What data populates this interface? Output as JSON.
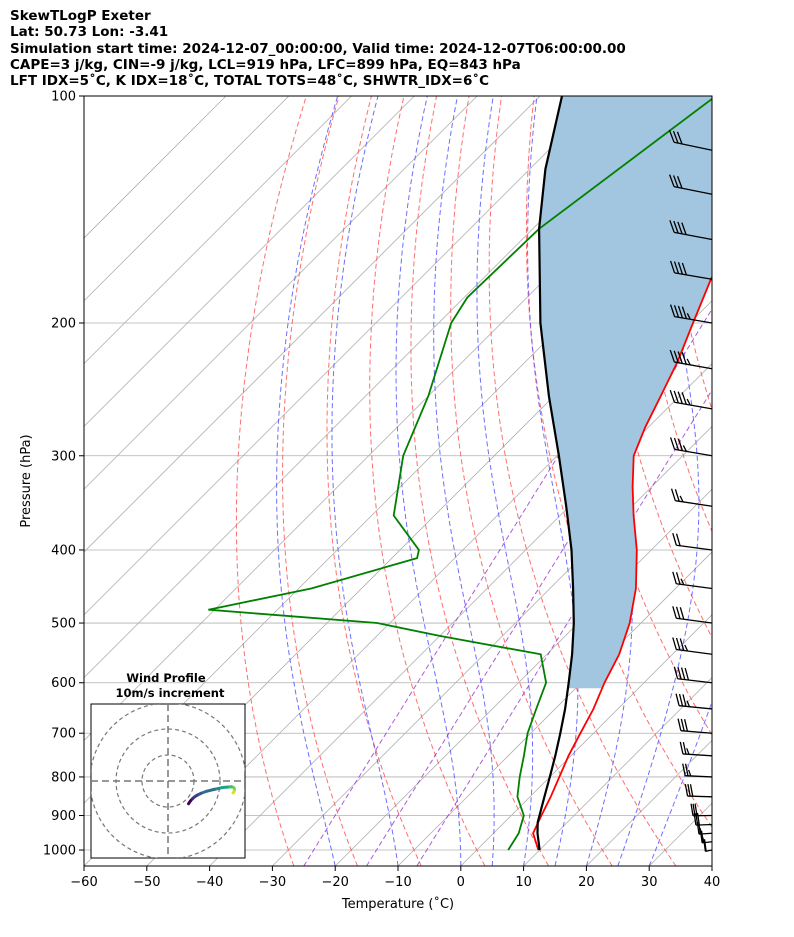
{
  "title_lines": [
    "SkewTLogP Exeter",
    "Lat: 50.73   Lon: -3.41",
    "Simulation start time: 2024-12-07_00:00:00, Valid time: 2024-12-07T06:00:00.00",
    "CAPE=3 j/kg, CIN=-9 j/kg, LCL=919 hPa, LFC=899 hPa, EQ=843 hPa",
    "LFT IDX=5˚C, K IDX=18˚C, TOTAL TOTS=48˚C, SHWTR_IDX=6˚C"
  ],
  "chart_data": {
    "type": "line",
    "xlabel": "Temperature (˚C)",
    "ylabel": "Pressure (hPa)",
    "xlim": [
      -60,
      40
    ],
    "ylim_pressure_hPa": [
      1050,
      100
    ],
    "y_scale": "log",
    "skew_factor": 1.0,
    "x_ticks": [
      -60,
      -50,
      -40,
      -30,
      -20,
      -10,
      0,
      10,
      20,
      30,
      40
    ],
    "x_tick_labels": [
      "−60",
      "−50",
      "−40",
      "−30",
      "−20",
      "−10",
      "0",
      "10",
      "20",
      "30",
      "40"
    ],
    "y_ticks": [
      100,
      200,
      300,
      400,
      500,
      600,
      700,
      800,
      900,
      1000
    ],
    "grid": true,
    "series": [
      {
        "color": "#ff0000",
        "points": [
          [
            1000,
            9.8
          ],
          [
            950,
            6.3
          ],
          [
            900,
            4.8
          ],
          [
            850,
            3.3
          ],
          [
            800,
            1.5
          ],
          [
            750,
            -0.4
          ],
          [
            700,
            -2.1
          ],
          [
            650,
            -3.9
          ],
          [
            600,
            -6.3
          ],
          [
            550,
            -8.5
          ],
          [
            500,
            -11.8
          ],
          [
            450,
            -16.3
          ],
          [
            400,
            -22.3
          ],
          [
            360,
            -28.3
          ],
          [
            330,
            -33.0
          ],
          [
            300,
            -37.8
          ],
          [
            275,
            -40.5
          ],
          [
            250,
            -43.0
          ],
          [
            225,
            -45.8
          ],
          [
            200,
            -49.5
          ],
          [
            175,
            -53.6
          ],
          [
            150,
            -57.3
          ],
          [
            125,
            -59.8
          ],
          [
            110,
            -61.2
          ],
          [
            100,
            -61.9
          ]
        ]
      },
      {
        "color": "#008000",
        "points": [
          [
            1000,
            5.0
          ],
          [
            950,
            4.0
          ],
          [
            900,
            2.0
          ],
          [
            850,
            -2.0
          ],
          [
            800,
            -4.8
          ],
          [
            750,
            -7.5
          ],
          [
            700,
            -10.5
          ],
          [
            650,
            -13.0
          ],
          [
            600,
            -15.6
          ],
          [
            550,
            -21.0
          ],
          [
            520,
            -40.0
          ],
          [
            500,
            -52.0
          ],
          [
            480,
            -81.0
          ],
          [
            450,
            -68.0
          ],
          [
            410,
            -56.0
          ],
          [
            400,
            -57.0
          ],
          [
            360,
            -66.5
          ],
          [
            300,
            -74.5
          ],
          [
            250,
            -80.0
          ],
          [
            200,
            -88.0
          ],
          [
            185,
            -89.5
          ],
          [
            150,
            -89.0
          ],
          [
            100,
            -82.0
          ]
        ]
      },
      {
        "color": "#000000",
        "points": [
          [
            1000,
            10.0
          ],
          [
            950,
            7.0
          ],
          [
            919,
            5.3
          ],
          [
            900,
            4.5
          ],
          [
            850,
            2.3
          ],
          [
            800,
            0.0
          ],
          [
            750,
            -2.5
          ],
          [
            700,
            -5.3
          ],
          [
            650,
            -8.4
          ],
          [
            600,
            -12.0
          ],
          [
            550,
            -16.0
          ],
          [
            500,
            -20.7
          ],
          [
            450,
            -26.3
          ],
          [
            400,
            -32.7
          ],
          [
            350,
            -40.5
          ],
          [
            300,
            -49.7
          ],
          [
            250,
            -60.8
          ],
          [
            200,
            -73.8
          ],
          [
            150,
            -89.0
          ],
          [
            125,
            -97.5
          ],
          [
            100,
            -106.5
          ]
        ]
      }
    ],
    "cape_fill_color": "#a2c6e0",
    "dry_adiabats_theta_C": [
      -30,
      -20,
      -10,
      0,
      10,
      20,
      30,
      40,
      50,
      60,
      70,
      80,
      90,
      100,
      110,
      120,
      130,
      140,
      150,
      160
    ],
    "moist_adiabats_C": [
      -20,
      -10,
      0,
      5,
      10,
      15,
      20,
      25,
      30
    ],
    "wind_barbs": [
      {
        "p": 1000,
        "speed_kt": 20,
        "dir_deg": 190
      },
      {
        "p": 975,
        "speed_kt": 25,
        "dir_deg": 195
      },
      {
        "p": 950,
        "speed_kt": 28,
        "dir_deg": 200
      },
      {
        "p": 925,
        "speed_kt": 30,
        "dir_deg": 205
      },
      {
        "p": 900,
        "speed_kt": 30,
        "dir_deg": 210
      },
      {
        "p": 850,
        "speed_kt": 30,
        "dir_deg": 220
      },
      {
        "p": 800,
        "speed_kt": 28,
        "dir_deg": 225
      },
      {
        "p": 750,
        "speed_kt": 28,
        "dir_deg": 230
      },
      {
        "p": 700,
        "speed_kt": 30,
        "dir_deg": 235
      },
      {
        "p": 650,
        "speed_kt": 35,
        "dir_deg": 240
      },
      {
        "p": 600,
        "speed_kt": 40,
        "dir_deg": 245
      },
      {
        "p": 550,
        "speed_kt": 35,
        "dir_deg": 250
      },
      {
        "p": 500,
        "speed_kt": 30,
        "dir_deg": 250
      },
      {
        "p": 450,
        "speed_kt": 25,
        "dir_deg": 250
      },
      {
        "p": 400,
        "speed_kt": 20,
        "dir_deg": 250
      },
      {
        "p": 350,
        "speed_kt": 25,
        "dir_deg": 255
      },
      {
        "p": 300,
        "speed_kt": 35,
        "dir_deg": 260
      },
      {
        "p": 260,
        "speed_kt": 45,
        "dir_deg": 262
      },
      {
        "p": 230,
        "speed_kt": 45,
        "dir_deg": 262
      },
      {
        "p": 200,
        "speed_kt": 45,
        "dir_deg": 260
      },
      {
        "p": 175,
        "speed_kt": 40,
        "dir_deg": 260
      },
      {
        "p": 155,
        "speed_kt": 40,
        "dir_deg": 265
      },
      {
        "p": 135,
        "speed_kt": 30,
        "dir_deg": 268
      },
      {
        "p": 118,
        "speed_kt": 30,
        "dir_deg": 270
      }
    ],
    "inset": {
      "title_lines": [
        "Wind Profile",
        "10m/s increment"
      ],
      "rings": 3,
      "hodograph": [
        [
          9.0,
          2.0
        ],
        [
          9.5,
          1.5
        ],
        [
          9.8,
          0.5
        ],
        [
          9.6,
          -0.5
        ],
        [
          9.0,
          -1.0
        ],
        [
          8.0,
          -1.2
        ],
        [
          6.0,
          -1.0
        ],
        [
          3.5,
          -0.8
        ],
        [
          1.5,
          -0.3
        ],
        [
          -1.0,
          0.2
        ],
        [
          -5.0,
          1.2
        ],
        [
          -8.0,
          2.3
        ],
        [
          -10.0,
          3.3
        ],
        [
          -11.5,
          4.3
        ],
        [
          -12.5,
          5.2
        ],
        [
          -13.5,
          6.3
        ],
        [
          -14.5,
          7.8
        ]
      ]
    }
  }
}
